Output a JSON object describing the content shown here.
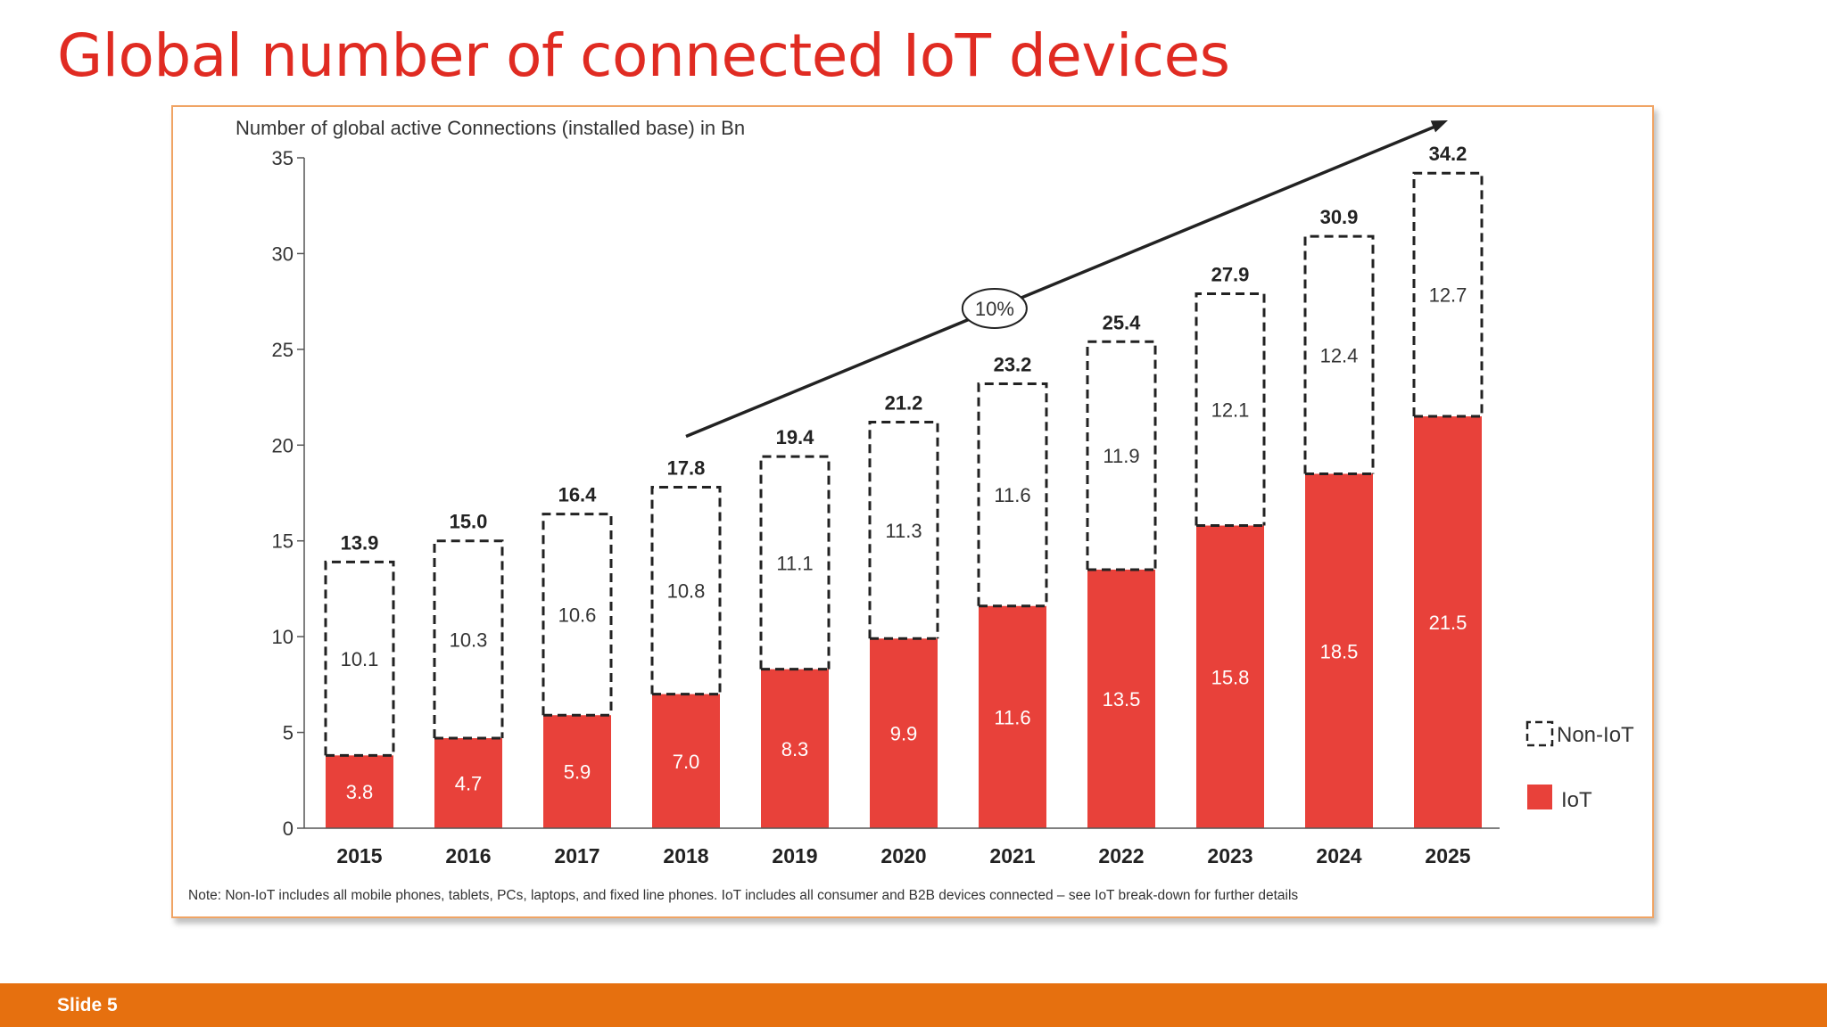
{
  "slide": {
    "title": "Global number of connected IoT devices",
    "number_label": "Slide 5"
  },
  "colors": {
    "title": "#e02b22",
    "iot_bar": "#e8413a",
    "footer": "#e6700f",
    "frame_border": "#f0a464"
  },
  "chart_data": {
    "type": "bar",
    "stacked": true,
    "title": "Number of global active Connections (installed base) in Bn",
    "xlabel": "",
    "ylabel": "",
    "categories": [
      "2015",
      "2016",
      "2017",
      "2018",
      "2019",
      "2020",
      "2021",
      "2022",
      "2023",
      "2024",
      "2025"
    ],
    "series": [
      {
        "name": "IoT",
        "style": "solid",
        "values": [
          3.8,
          4.7,
          5.9,
          7.0,
          8.3,
          9.9,
          11.6,
          13.5,
          15.8,
          18.5,
          21.5
        ]
      },
      {
        "name": "Non-IoT",
        "style": "dashed-outline",
        "values": [
          10.1,
          10.3,
          10.6,
          10.8,
          11.1,
          11.3,
          11.6,
          11.9,
          12.1,
          12.4,
          12.7
        ]
      }
    ],
    "totals": [
      13.9,
      15.0,
      16.4,
      17.8,
      19.4,
      21.2,
      23.2,
      25.4,
      27.9,
      30.9,
      34.2
    ],
    "ylim": [
      0,
      35
    ],
    "yticks": [
      0,
      5,
      10,
      15,
      20,
      25,
      30,
      35
    ],
    "grid": false,
    "legend_position": "bottom-right",
    "annotation": {
      "text": "10%",
      "from_category": "2018",
      "to_category": "2025"
    },
    "note": "Note: Non-IoT includes all mobile phones, tablets, PCs, laptops, and fixed line phones. IoT includes all consumer and B2B devices connected – see IoT break-down for further details"
  }
}
